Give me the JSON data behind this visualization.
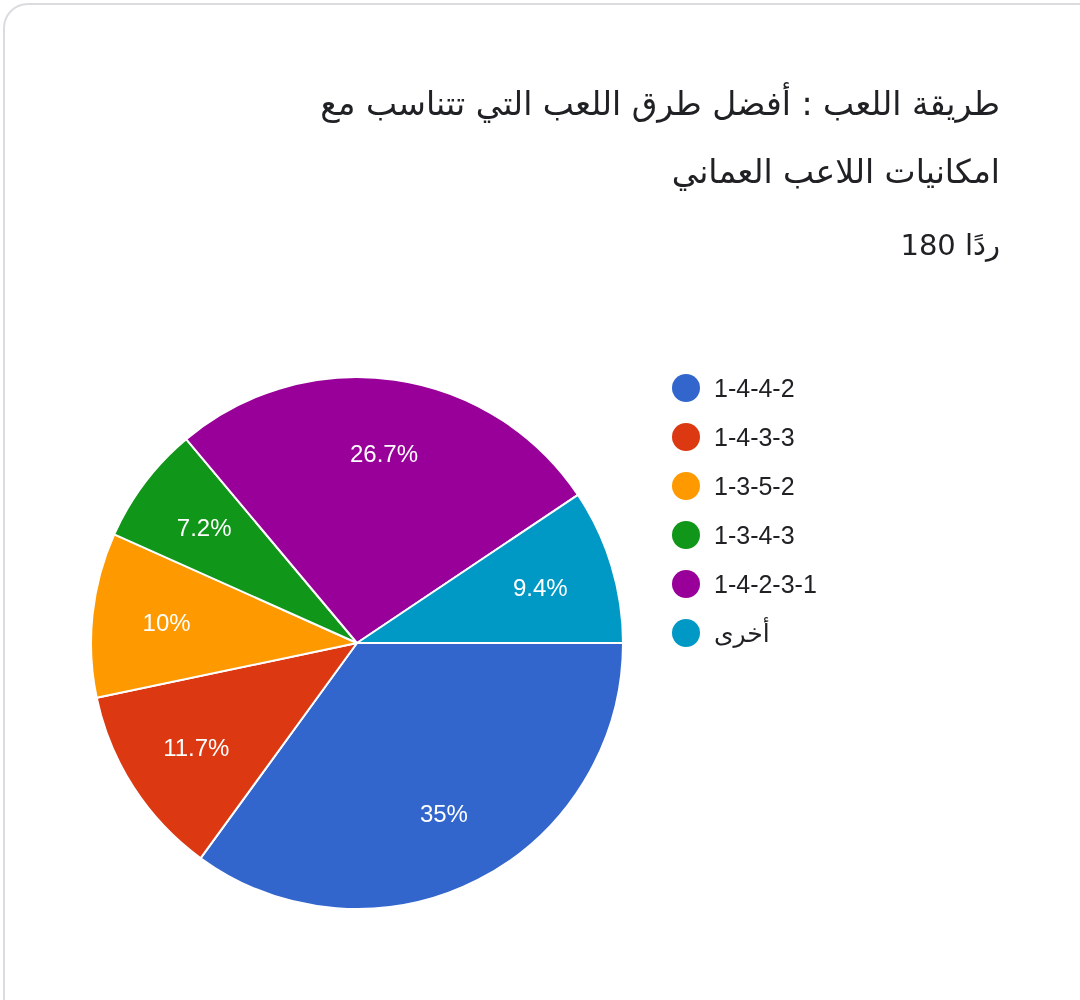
{
  "chart_data": {
    "type": "pie",
    "title": "طريقة اللعب : أفضل طرق اللعب التي تتناسب مع امكانيات اللاعب العماني",
    "subtitle": "180 ردًا",
    "categories": [
      "1-4-4-2",
      "1-4-3-3",
      "1-3-5-2",
      "1-3-4-3",
      "1-4-2-3-1",
      "أخرى"
    ],
    "values": [
      35,
      11.7,
      10,
      7.2,
      26.7,
      9.4
    ],
    "colors": [
      "#3366cc",
      "#dc3912",
      "#ff9900",
      "#109618",
      "#990099",
      "#0099c6"
    ],
    "value_labels": [
      "35%",
      "11.7%",
      "10%",
      "7.2%",
      "26.7%",
      "9.4%"
    ],
    "legend": "right"
  }
}
